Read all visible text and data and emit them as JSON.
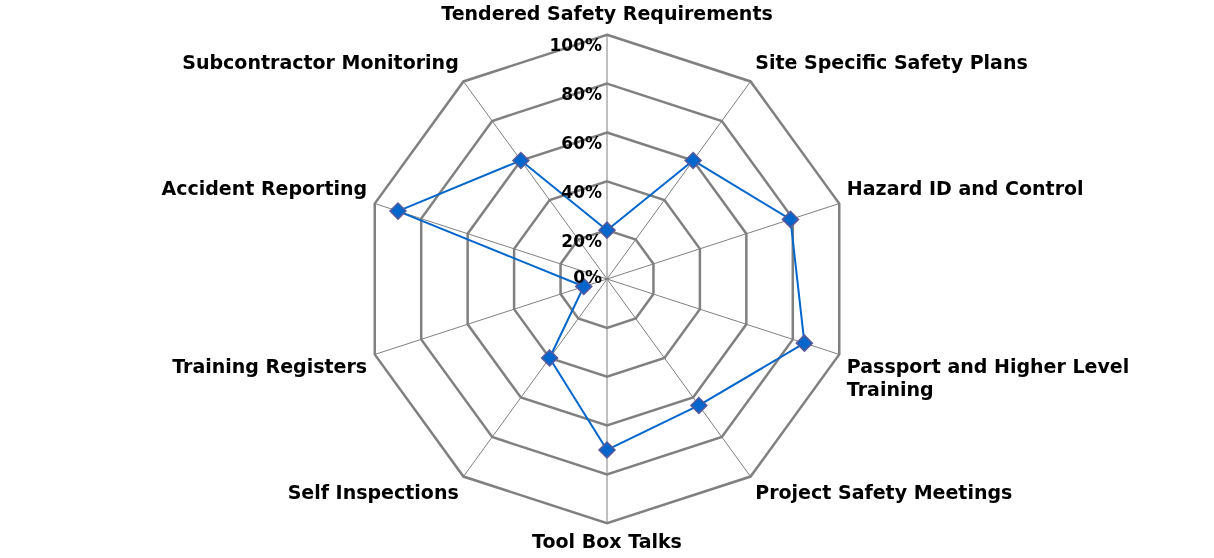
{
  "chart_data": {
    "type": "radar",
    "categories": [
      "Tendered Safety Requirements",
      "Site Specific Safety Plans",
      "Hazard ID and Control",
      "Passport and Higher Level Training",
      "Project Safety Meetings",
      "Tool Box Talks",
      "Self Inspections",
      "Training Registers",
      "Accident Reporting",
      "Subcontractor Monitoring"
    ],
    "series": [
      {
        "color": "#0066cc",
        "values": [
          20,
          60,
          79,
          85,
          64,
          70,
          40,
          10,
          90,
          60
        ]
      }
    ],
    "ylim": [
      0,
      100
    ],
    "yticks": [
      {
        "value": 0,
        "label": "0%"
      },
      {
        "value": 20,
        "label": "20%"
      },
      {
        "value": 40,
        "label": "40%"
      },
      {
        "value": 60,
        "label": "60%"
      },
      {
        "value": 80,
        "label": "80%"
      },
      {
        "value": 100,
        "label": "100%"
      }
    ],
    "grid": true,
    "marker": "diamond",
    "line_style": "solid"
  }
}
